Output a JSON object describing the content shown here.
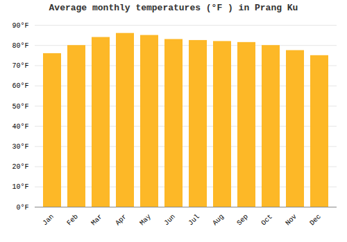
{
  "chart_data": {
    "type": "bar",
    "title": "Average monthly temperatures (°F ) in Prang Ku",
    "categories": [
      "Jan",
      "Feb",
      "Mar",
      "Apr",
      "May",
      "Jun",
      "Jul",
      "Aug",
      "Sep",
      "Oct",
      "Nov",
      "Dec"
    ],
    "values": [
      76,
      80,
      84,
      86,
      85,
      83,
      82.5,
      82,
      81.5,
      80,
      77.5,
      75
    ],
    "color": "#FDB827",
    "ylim": [
      0,
      90
    ],
    "yticks": [
      {
        "value": 0,
        "label": "0°F"
      },
      {
        "value": 10,
        "label": "10°F"
      },
      {
        "value": 20,
        "label": "20°F"
      },
      {
        "value": 30,
        "label": "30°F"
      },
      {
        "value": 40,
        "label": "40°F"
      },
      {
        "value": 50,
        "label": "50°F"
      },
      {
        "value": 60,
        "label": "60°F"
      },
      {
        "value": 70,
        "label": "70°F"
      },
      {
        "value": 80,
        "label": "80°F"
      },
      {
        "value": 90,
        "label": "90°F"
      }
    ],
    "grid": true
  }
}
